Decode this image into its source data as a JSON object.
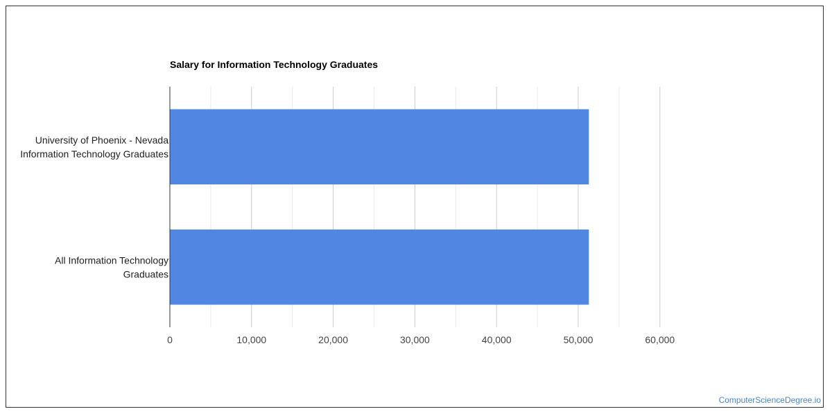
{
  "chart_data": {
    "type": "bar",
    "orientation": "horizontal",
    "title": "Salary for Information Technology Graduates",
    "categories": [
      [
        "University of Phoenix - Nevada",
        "Information Technology Graduates"
      ],
      [
        "All Information Technology",
        "Graduates"
      ]
    ],
    "values": [
      51300,
      51300
    ],
    "xlim": [
      0,
      60000
    ],
    "xticks": [
      0,
      10000,
      20000,
      30000,
      40000,
      50000,
      60000
    ],
    "xtick_labels": [
      "0",
      "10,000",
      "20,000",
      "30,000",
      "40,000",
      "50,000",
      "60,000"
    ],
    "grid": true,
    "bar_color": "#5286e3",
    "grid_major_color": "#cccccc",
    "grid_minor_color": "#ebebeb"
  },
  "footer": {
    "watermark": "ComputerScienceDegree.io"
  }
}
